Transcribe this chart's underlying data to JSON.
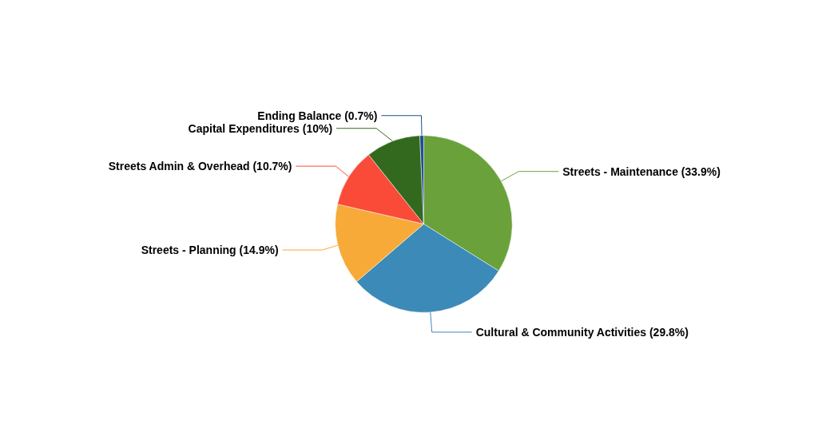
{
  "chart_data": {
    "type": "pie",
    "categories": [
      "Streets - Maintenance",
      "Cultural & Community Activities",
      "Streets - Planning",
      "Streets Admin & Overhead",
      "Capital Expenditures",
      "Ending Balance"
    ],
    "values": [
      33.9,
      29.8,
      14.9,
      10.7,
      10,
      0.7
    ],
    "colors": [
      "#6aa13a",
      "#3c8ab8",
      "#f7aa38",
      "#f94b38",
      "#33691e",
      "#1f4e8c"
    ],
    "value_labels": [
      "(33.9%)",
      "(29.8%)",
      "(14.9%)",
      "(10.7%)",
      "(10%)",
      "(0.7%)"
    ]
  }
}
